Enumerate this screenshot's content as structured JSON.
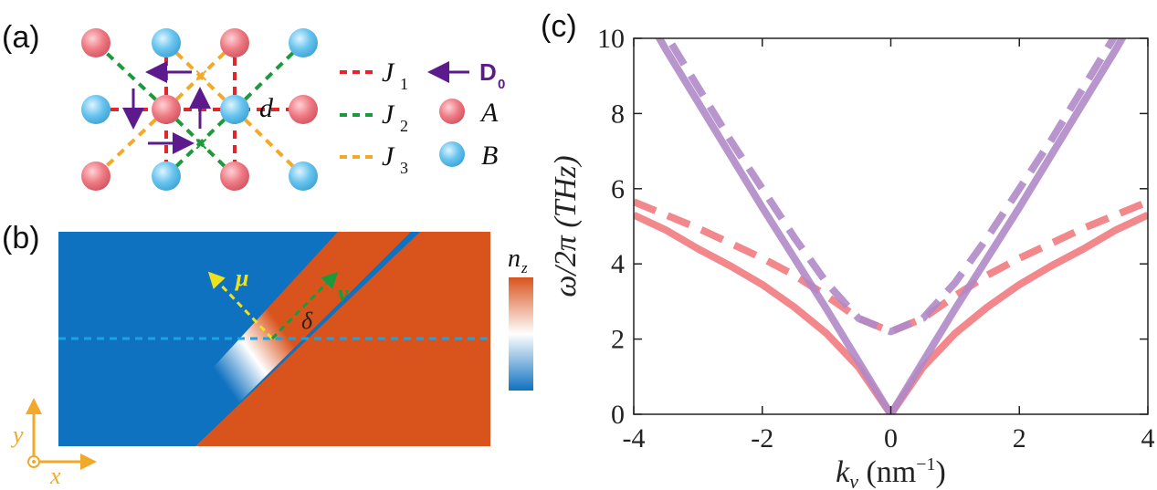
{
  "panels": {
    "a": {
      "label": "(a)",
      "bond_label": "d",
      "legend": [
        {
          "kind": "line",
          "color": "#e8232a",
          "symbol": "J",
          "sub": "1"
        },
        {
          "kind": "line",
          "color": "#1a9a3c",
          "symbol": "J",
          "sub": "2"
        },
        {
          "kind": "line",
          "color": "#f2a929",
          "symbol": "J",
          "sub": "3"
        },
        {
          "kind": "arrow",
          "color": "#5c1a8c",
          "symbol": "D",
          "sub": "0"
        },
        {
          "kind": "sphere",
          "color": "#ee7a84",
          "symbol": "A"
        },
        {
          "kind": "sphere",
          "color": "#66c3ee",
          "symbol": "B"
        }
      ]
    },
    "b": {
      "label": "(b)",
      "colorbar_label": "n",
      "colorbar_sub": "z",
      "mu_label": "μ",
      "nu_label": "ν",
      "angle_label": "δ",
      "axis_x": "x",
      "axis_y": "y",
      "colors": {
        "low": "#0f72c0",
        "high": "#d9541d",
        "mid": "#ffffff",
        "mu": "#f0e21a",
        "nu": "#1a9a3c",
        "line": "#1aa4e8",
        "axes": "#f2a929"
      }
    },
    "c": {
      "label": "(c)"
    }
  },
  "chart_data": {
    "type": "line",
    "xlabel": "k",
    "xlabel_sub": "ν",
    "xlabel_unit": "(nm",
    "xlabel_unit_sup": "−1",
    "xlabel_unit_close": ")",
    "ylabel": "ω/2π (THz)",
    "xlim": [
      -4,
      4
    ],
    "ylim": [
      0,
      10
    ],
    "xticks": [
      -4,
      -2,
      0,
      2,
      4
    ],
    "xtick_labels": [
      "-4",
      "-2",
      "0",
      "2",
      "4"
    ],
    "yticks": [
      0,
      2,
      4,
      6,
      8,
      10
    ],
    "ytick_labels": [
      "0",
      "2",
      "4",
      "6",
      "8",
      "10"
    ],
    "grid": false,
    "series": [
      {
        "color": "#b089c8",
        "style": "solid",
        "x": [
          -4,
          -3.5,
          -3,
          -2.5,
          -2,
          -1.5,
          -1,
          -0.5,
          0,
          0.5,
          1,
          1.5,
          2,
          2.5,
          3,
          3.5,
          4
        ],
        "y": [
          11.2,
          9.7,
          8.3,
          6.9,
          5.5,
          4.15,
          2.8,
          1.4,
          0,
          1.4,
          2.8,
          4.15,
          5.5,
          6.9,
          8.3,
          9.7,
          11.2
        ]
      },
      {
        "color": "#b089c8",
        "style": "dashed",
        "x": [
          -4,
          -3.5,
          -3,
          -2.5,
          -2,
          -1.5,
          -1,
          -0.5,
          0,
          0.5,
          1,
          1.5,
          2,
          2.5,
          3,
          3.5,
          4
        ],
        "y": [
          11.5,
          10.1,
          8.7,
          7.3,
          6.0,
          4.7,
          3.5,
          2.55,
          2.2,
          2.55,
          3.5,
          4.7,
          6.0,
          7.3,
          8.7,
          10.1,
          11.5
        ]
      },
      {
        "color": "#f27b7f",
        "style": "solid",
        "x": [
          -4,
          -3.5,
          -3,
          -2.5,
          -2,
          -1.5,
          -1,
          -0.5,
          0,
          0.5,
          1,
          1.5,
          2,
          2.5,
          3,
          3.5,
          4
        ],
        "y": [
          5.3,
          4.9,
          4.4,
          3.95,
          3.45,
          2.85,
          2.15,
          1.25,
          0,
          1.25,
          2.15,
          2.85,
          3.45,
          3.95,
          4.4,
          4.9,
          5.3
        ]
      },
      {
        "color": "#f27b7f",
        "style": "dashed",
        "x": [
          -4,
          -3.5,
          -3,
          -2.5,
          -2,
          -1.5,
          -1,
          -0.5,
          0,
          0.5,
          1,
          1.5,
          2,
          2.5,
          3,
          3.5,
          4
        ],
        "y": [
          5.65,
          5.3,
          4.95,
          4.55,
          4.15,
          3.7,
          3.15,
          2.55,
          2.2,
          2.55,
          3.15,
          3.7,
          4.15,
          4.55,
          4.95,
          5.3,
          5.65
        ]
      }
    ]
  }
}
